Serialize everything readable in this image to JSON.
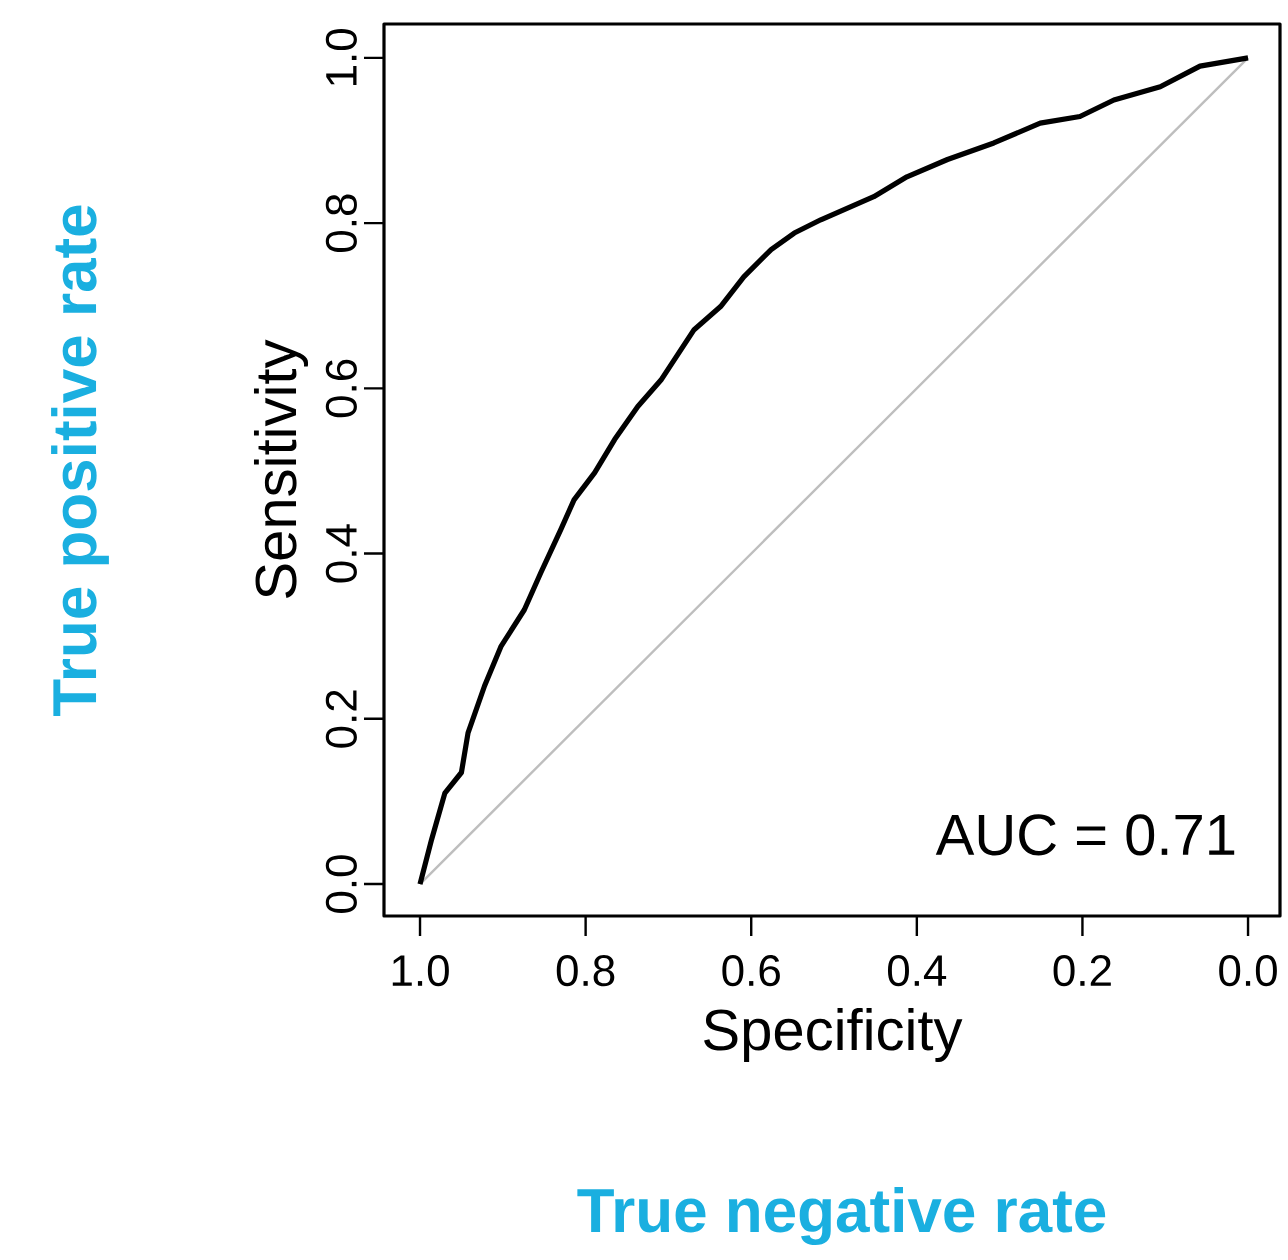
{
  "chart_data": {
    "type": "line",
    "xlabel": "Specificity",
    "ylabel": "Sensitivity",
    "xlim": [
      1.0435,
      -0.0386
    ],
    "ylim": [
      -0.0387,
      1.041
    ],
    "xticks": [
      {
        "value": 1,
        "label": "1.0"
      },
      0.8,
      0.6,
      0.4,
      0.2,
      {
        "value": 0,
        "label": "0.0"
      }
    ],
    "yticks": [
      {
        "value": 0,
        "label": "0.0"
      },
      0.2,
      0.4,
      0.6,
      0.8,
      {
        "value": 1,
        "label": "1.0"
      }
    ],
    "grid": false,
    "legend": false,
    "marker": "none",
    "line_style": "solid",
    "annotations": [
      "AUC = 0.71",
      "True positive rate",
      "True negative rate"
    ],
    "series": [
      {
        "color": "#bebebe",
        "x": [
          1,
          0
        ],
        "values": [
          0,
          1
        ]
      },
      {
        "color": "#000000",
        "x": [
          1.0,
          0.986,
          0.97,
          0.95,
          0.942,
          0.922,
          0.902,
          0.874,
          0.854,
          0.83,
          0.814,
          0.789,
          0.765,
          0.737,
          0.709,
          0.669,
          0.637,
          0.609,
          0.576,
          0.548,
          0.516,
          0.452,
          0.412,
          0.363,
          0.307,
          0.251,
          0.203,
          0.162,
          0.106,
          0.058,
          0.0
        ],
        "values": [
          0,
          0.054,
          0.11,
          0.135,
          0.183,
          0.24,
          0.288,
          0.332,
          0.377,
          0.429,
          0.465,
          0.498,
          0.538,
          0.578,
          0.61,
          0.671,
          0.699,
          0.735,
          0.768,
          0.788,
          0.804,
          0.832,
          0.856,
          0.877,
          0.897,
          0.921,
          0.929,
          0.949,
          0.965,
          0.99,
          1.0
        ]
      }
    ]
  }
}
